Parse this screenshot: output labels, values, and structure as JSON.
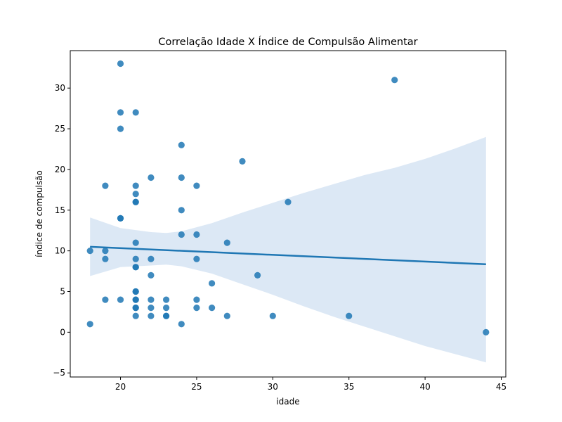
{
  "chart_data": {
    "type": "scatter",
    "title": "Correlação Idade X Índice de Compulsão Alimentar",
    "xlabel": "idade",
    "ylabel": "índice de compulsão",
    "xlim": [
      16.7,
      45.3
    ],
    "ylim": [
      -5.5,
      34.6
    ],
    "xticks": [
      20,
      25,
      30,
      35,
      40,
      45
    ],
    "yticks": [
      -5,
      0,
      5,
      10,
      15,
      20,
      25,
      30
    ],
    "grid": false,
    "colors": {
      "points": "#1f77b4",
      "line": "#1f77b4",
      "band": "#c5d9ee"
    },
    "points": [
      [
        18,
        10
      ],
      [
        18,
        1
      ],
      [
        19,
        18
      ],
      [
        19,
        10
      ],
      [
        19,
        9
      ],
      [
        19,
        4
      ],
      [
        20,
        33
      ],
      [
        20,
        27
      ],
      [
        20,
        25
      ],
      [
        20,
        14
      ],
      [
        20,
        14
      ],
      [
        20,
        4
      ],
      [
        21,
        27
      ],
      [
        21,
        18
      ],
      [
        21,
        17
      ],
      [
        21,
        16
      ],
      [
        21,
        16
      ],
      [
        21,
        11
      ],
      [
        21,
        9
      ],
      [
        21,
        8
      ],
      [
        21,
        8
      ],
      [
        21,
        5
      ],
      [
        21,
        5
      ],
      [
        21,
        4
      ],
      [
        21,
        4
      ],
      [
        21,
        3
      ],
      [
        21,
        3
      ],
      [
        21,
        2
      ],
      [
        22,
        19
      ],
      [
        22,
        9
      ],
      [
        22,
        7
      ],
      [
        22,
        4
      ],
      [
        22,
        3
      ],
      [
        22,
        2
      ],
      [
        23,
        4
      ],
      [
        23,
        3
      ],
      [
        23,
        2
      ],
      [
        23,
        2
      ],
      [
        24,
        23
      ],
      [
        24,
        19
      ],
      [
        24,
        15
      ],
      [
        24,
        12
      ],
      [
        24,
        1
      ],
      [
        25,
        18
      ],
      [
        25,
        12
      ],
      [
        25,
        9
      ],
      [
        25,
        4
      ],
      [
        25,
        3
      ],
      [
        26,
        6
      ],
      [
        26,
        3
      ],
      [
        27,
        11
      ],
      [
        27,
        2
      ],
      [
        28,
        21
      ],
      [
        29,
        7
      ],
      [
        30,
        2
      ],
      [
        31,
        16
      ],
      [
        35,
        2
      ],
      [
        38,
        31
      ],
      [
        44,
        0
      ]
    ],
    "regression": {
      "x_start": 18,
      "y_start": 10.5,
      "x_end": 44,
      "y_end": 8.35
    },
    "confidence_band": {
      "x": [
        18,
        20,
        22,
        23,
        24,
        26,
        28,
        30,
        32,
        34,
        36,
        38,
        40,
        42,
        44
      ],
      "upper": [
        14.1,
        12.8,
        12.3,
        12.2,
        12.4,
        13.4,
        14.7,
        15.9,
        17.1,
        18.2,
        19.3,
        20.2,
        21.3,
        22.6,
        24.0
      ],
      "lower": [
        6.9,
        8.0,
        8.2,
        8.3,
        8.1,
        7.2,
        5.9,
        4.6,
        3.2,
        1.9,
        0.7,
        -0.5,
        -1.7,
        -2.7,
        -3.7
      ]
    }
  }
}
